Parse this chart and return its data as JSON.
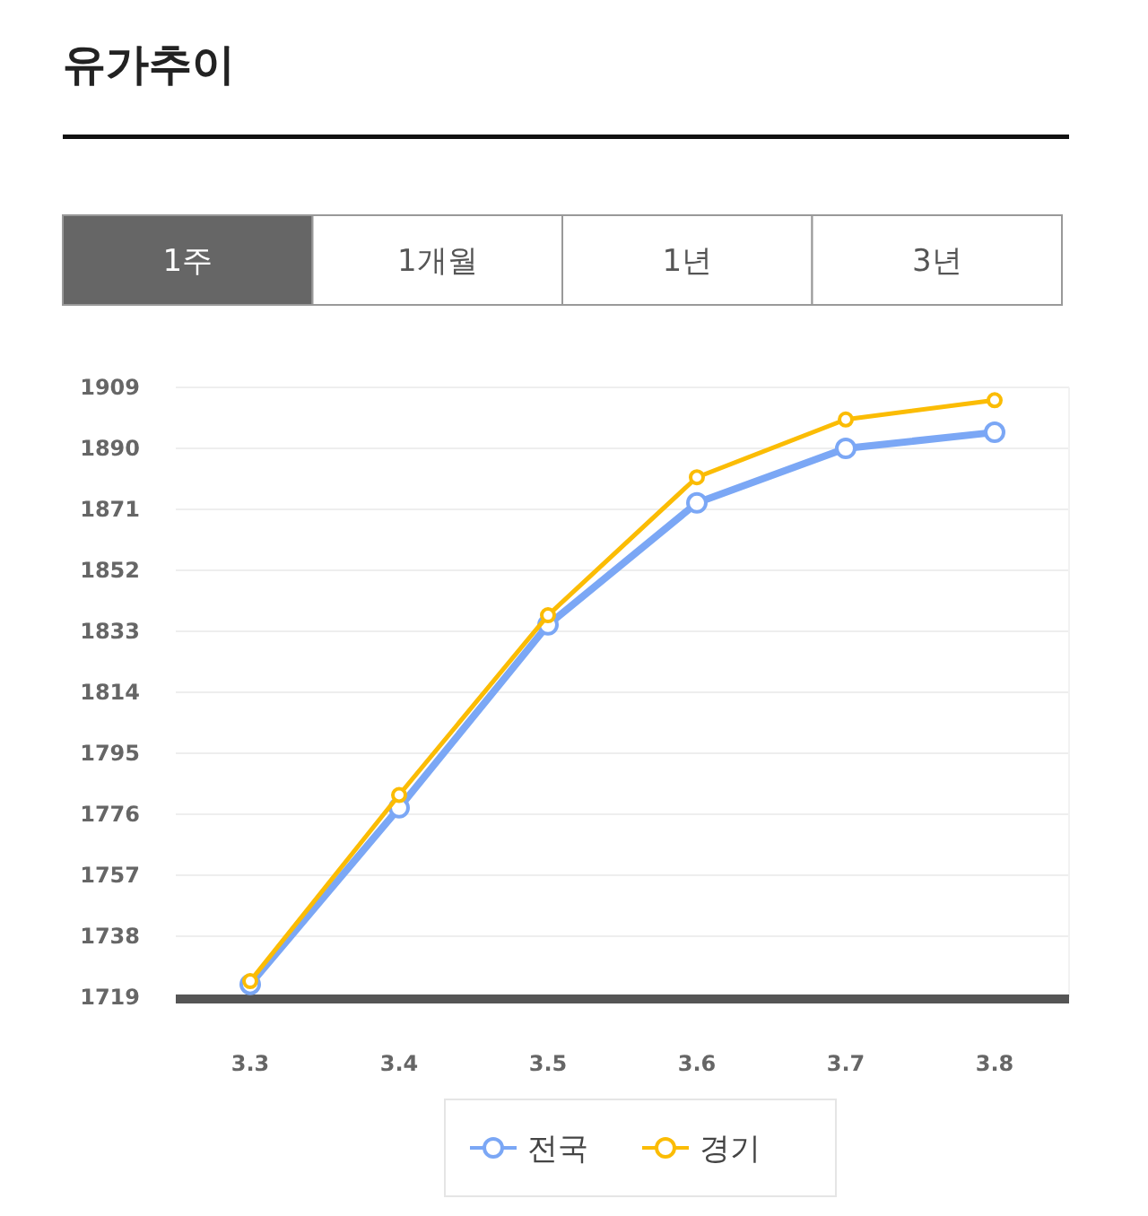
{
  "chart_data": {
    "type": "line",
    "title": "유가추이",
    "annotations": [
      "1주",
      "1개월",
      "1년",
      "3년"
    ],
    "categories": [
      "3.3",
      "3.4",
      "3.5",
      "3.6",
      "3.7",
      "3.8"
    ],
    "series": [
      {
        "name": "전국",
        "color": "#7ba7f5",
        "values": [
          1723,
          1778,
          1835,
          1873,
          1890,
          1895
        ]
      },
      {
        "name": "경기",
        "color": "#fbbc04",
        "values": [
          1724,
          1782,
          1838,
          1881,
          1899,
          1905
        ]
      }
    ],
    "ylim": [
      1719,
      1909
    ],
    "yticks": [
      1719,
      1738,
      1757,
      1776,
      1795,
      1814,
      1833,
      1852,
      1871,
      1890,
      1909
    ],
    "grid": "y",
    "legend": "bottom",
    "marker": "circle",
    "line_style": "solid"
  }
}
